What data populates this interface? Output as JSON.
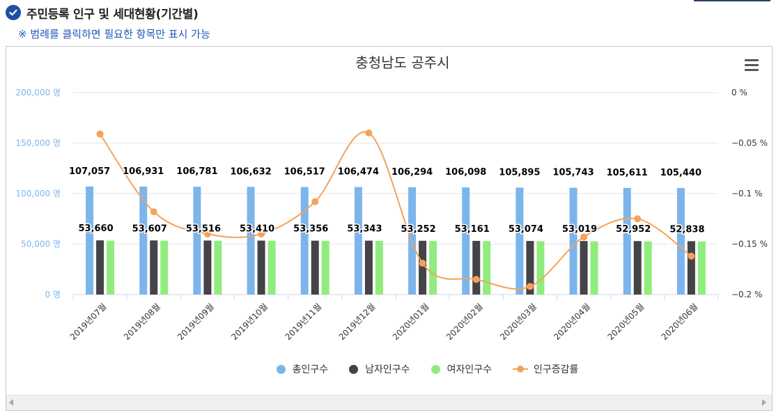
{
  "header": {
    "title": "주민등록 인구 및 세대현황(기간별)",
    "subtitle": "※ 범례를 클릭하면 필요한 항목만 표시 가능"
  },
  "colors": {
    "total": "#7cb5ec",
    "male": "#434348",
    "female": "#90ed7d",
    "rate": "#f4a259",
    "axis_label": "#7cb5ec"
  },
  "chart_data": {
    "type": "bar",
    "title": "충청남도 공주시",
    "categories": [
      "2019년07월",
      "2019년08월",
      "2019년09월",
      "2019년10월",
      "2019년11월",
      "2019년12월",
      "2020년01월",
      "2020년02월",
      "2020년03월",
      "2020년04월",
      "2020년05월",
      "2020년06월"
    ],
    "y_left": {
      "ticks": [
        "0 명",
        "50,000 명",
        "100,000 명",
        "150,000 명",
        "200,000 명"
      ],
      "range": [
        0,
        200000
      ]
    },
    "y_right": {
      "ticks": [
        "0 %",
        "−0.05 %",
        "−0.1 %",
        "−0.15 %",
        "−0.2 %"
      ],
      "range": [
        -0.2,
        0
      ]
    },
    "series": [
      {
        "name": "총인구수",
        "type": "bar",
        "values": [
          107057,
          106931,
          106781,
          106632,
          106517,
          106474,
          106294,
          106098,
          105895,
          105743,
          105611,
          105440
        ],
        "labels": [
          "107,057",
          "106,931",
          "106,781",
          "106,632",
          "106,517",
          "106,474",
          "106,294",
          "106,098",
          "105,895",
          "105,743",
          "105,611",
          "105,440"
        ]
      },
      {
        "name": "남자인구수",
        "type": "bar",
        "values": [
          53660,
          53607,
          53516,
          53410,
          53356,
          53343,
          53252,
          53161,
          53074,
          53019,
          52952,
          52838
        ],
        "labels": [
          "53,660",
          "53,607",
          "53,516",
          "53,410",
          "53,356",
          "53,343",
          "53,252",
          "53,161",
          "53,074",
          "53,019",
          "52,952",
          "52,838"
        ]
      },
      {
        "name": "여자인구수",
        "type": "bar",
        "values": [
          53397,
          53324,
          53265,
          53222,
          53161,
          53131,
          53042,
          52937,
          52821,
          52724,
          52659,
          52602
        ]
      },
      {
        "name": "인구증감률",
        "type": "line",
        "axis": "right",
        "values": [
          -0.041,
          -0.118,
          -0.14,
          -0.14,
          -0.108,
          -0.04,
          -0.169,
          -0.185,
          -0.192,
          -0.143,
          -0.125,
          -0.162
        ]
      }
    ],
    "grid": true,
    "legend_position": "bottom-center"
  },
  "legend": {
    "items": [
      "총인구수",
      "남자인구수",
      "여자인구수",
      "인구증감률"
    ]
  }
}
